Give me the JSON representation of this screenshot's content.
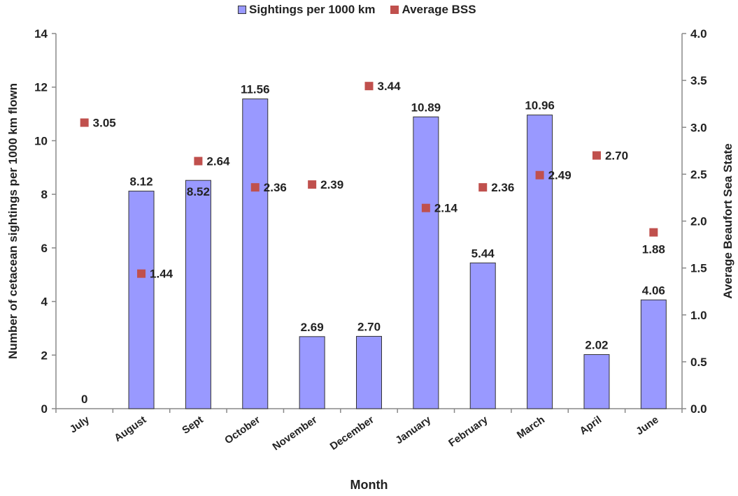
{
  "chart_data": {
    "type": "bar",
    "title": "",
    "xlabel": "Month",
    "ylabel": "Number of cetacean sightings per 1000 km flown",
    "y2label": "Average Beaufort Sea State",
    "categories": [
      "July",
      "August",
      "Sept",
      "October",
      "November",
      "December",
      "January",
      "February",
      "March",
      "April",
      "June"
    ],
    "ylim": [
      0,
      14
    ],
    "y2lim": [
      0,
      4.0
    ],
    "yticks": [
      "0",
      "2",
      "4",
      "6",
      "8",
      "10",
      "12",
      "14"
    ],
    "y2ticks": [
      "0.0",
      "0.5",
      "1.0",
      "1.5",
      "2.0",
      "2.5",
      "3.0",
      "3.5",
      "4.0"
    ],
    "legend_position": "top-center",
    "grid": false,
    "series": [
      {
        "name": "Sightings per 1000 km",
        "type": "bar",
        "axis": "left",
        "color": "#9999ff",
        "values": [
          0,
          8.12,
          8.52,
          11.56,
          2.69,
          2.7,
          10.89,
          5.44,
          10.96,
          2.02,
          4.06
        ],
        "labels": [
          "0",
          "8.12",
          "8.52",
          "11.56",
          "2.69",
          "2.70",
          "10.89",
          "5.44",
          "10.96",
          "2.02",
          "4.06"
        ]
      },
      {
        "name": "Average BSS",
        "type": "scatter",
        "axis": "right",
        "color": "#c0504d",
        "values": [
          3.05,
          1.44,
          2.64,
          2.36,
          2.39,
          3.44,
          2.14,
          2.36,
          2.49,
          2.7,
          1.88
        ],
        "labels": [
          "3.05",
          "1.44",
          "2.64",
          "2.36",
          "2.39",
          "3.44",
          "2.14",
          "2.36",
          "2.49",
          "2.70",
          "1.88"
        ]
      }
    ]
  }
}
